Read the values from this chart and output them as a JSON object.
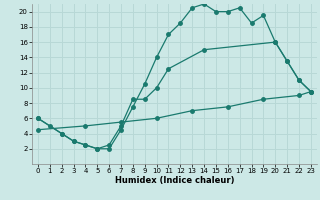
{
  "xlabel": "Humidex (Indice chaleur)",
  "bg_color": "#cce8e6",
  "grid_color": "#b8d8d6",
  "line_color": "#1a7a6e",
  "xlim": [
    -0.5,
    23.5
  ],
  "ylim": [
    0,
    21
  ],
  "xticks": [
    0,
    1,
    2,
    3,
    4,
    5,
    6,
    7,
    8,
    9,
    10,
    11,
    12,
    13,
    14,
    15,
    16,
    17,
    18,
    19,
    20,
    21,
    22,
    23
  ],
  "yticks": [
    2,
    4,
    6,
    8,
    10,
    12,
    14,
    16,
    18,
    20
  ],
  "line1_x": [
    0,
    1,
    2,
    3,
    4,
    5,
    6,
    7,
    8,
    9,
    10,
    11,
    12,
    13,
    14,
    15,
    16,
    17,
    18,
    19,
    20,
    21,
    22,
    23
  ],
  "line1_y": [
    6,
    5,
    4,
    3,
    2.5,
    2,
    2,
    4.5,
    7.5,
    10.5,
    14,
    17,
    18.5,
    20.5,
    21,
    20,
    20,
    20.5,
    18.5,
    19.5,
    16,
    13.5,
    11,
    9.5
  ],
  "line2_x": [
    0,
    2,
    3,
    4,
    5,
    6,
    7,
    8,
    9,
    10,
    11,
    14,
    20,
    21,
    22,
    23
  ],
  "line2_y": [
    6,
    4,
    3,
    2.5,
    2,
    2.5,
    5,
    8.5,
    8.5,
    10,
    12.5,
    15,
    16,
    13.5,
    11,
    9.5
  ],
  "line3_x": [
    0,
    4,
    7,
    10,
    13,
    16,
    19,
    22,
    23
  ],
  "line3_y": [
    4.5,
    5,
    5.5,
    6,
    7,
    7.5,
    8.5,
    9,
    9.5
  ]
}
